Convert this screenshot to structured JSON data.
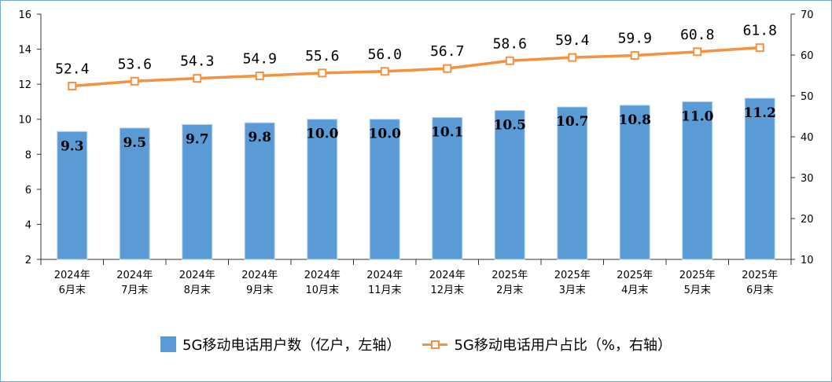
{
  "chart_data": {
    "type": "bar+line",
    "categories": [
      "2024年\n6月末",
      "2024年\n7月末",
      "2024年\n8月末",
      "2024年\n9月末",
      "2024年\n10月末",
      "2024年\n11月末",
      "2024年\n12月末",
      "2025年\n2月末",
      "2025年\n3月末",
      "2025年\n4月末",
      "2025年\n5月末",
      "2025年\n6月末"
    ],
    "series": [
      {
        "name": "5G移动电话用户数（亿户，左轴）",
        "type": "bar",
        "axis": "left",
        "color": "#5b9bd5",
        "values": [
          9.3,
          9.5,
          9.7,
          9.8,
          10.0,
          10.0,
          10.1,
          10.5,
          10.7,
          10.8,
          11.0,
          11.2
        ],
        "labels": [
          "9.3",
          "9.5",
          "9.7",
          "9.8",
          "10.0",
          "10.0",
          "10.1",
          "10.5",
          "10.7",
          "10.8",
          "11.0",
          "11.2"
        ]
      },
      {
        "name": "5G移动电话用户占比（%，右轴）",
        "type": "line",
        "axis": "right",
        "color": "#f5923e",
        "values": [
          52.4,
          53.6,
          54.3,
          54.9,
          55.6,
          56.0,
          56.7,
          58.6,
          59.4,
          59.9,
          60.8,
          61.8
        ],
        "labels": [
          "52.4",
          "53.6",
          "54.3",
          "54.9",
          "55.6",
          "56.0",
          "56.7",
          "58.6",
          "59.4",
          "59.9",
          "60.8",
          "61.8"
        ]
      }
    ],
    "y_left": {
      "min": 2,
      "max": 16,
      "ticks": [
        "2",
        "4",
        "6",
        "8",
        "10",
        "12",
        "14",
        "16"
      ]
    },
    "y_right": {
      "min": 10,
      "max": 70,
      "ticks": [
        "10",
        "20",
        "30",
        "40",
        "50",
        "60",
        "70"
      ]
    },
    "grid": false,
    "legend_position": "bottom"
  }
}
